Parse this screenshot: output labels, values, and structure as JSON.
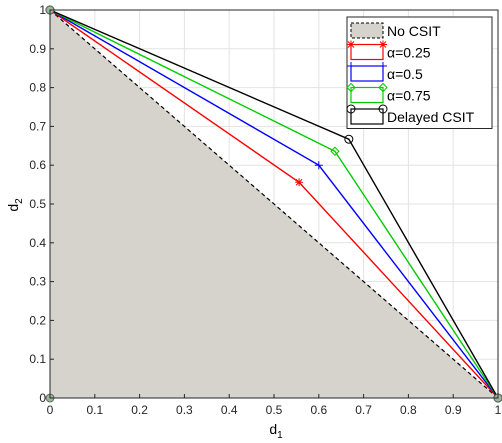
{
  "chart_data": {
    "type": "line",
    "title": "",
    "xlabel": "d",
    "xlabel_sub": "1",
    "ylabel": "d",
    "ylabel_sub": "2",
    "xlim": [
      0,
      1
    ],
    "ylim": [
      0,
      1
    ],
    "xticks": [
      "0",
      "0.1",
      "0.2",
      "0.3",
      "0.4",
      "0.5",
      "0.6",
      "0.7",
      "0.8",
      "0.9",
      "1"
    ],
    "yticks": [
      "0",
      "0.1",
      "0.2",
      "0.3",
      "0.4",
      "0.5",
      "0.6",
      "0.7",
      "0.8",
      "0.9",
      "1"
    ],
    "grid": true,
    "legend_position": "top-right",
    "series": [
      {
        "name": "No CSIT",
        "kind": "region",
        "color": "#d6d2cc",
        "line_color": "#000000",
        "line_style": "dashed",
        "points": [
          [
            0,
            1
          ],
          [
            1,
            0
          ]
        ]
      },
      {
        "name": "α=0.25",
        "color": "#ff0000",
        "marker": "star",
        "points": [
          [
            0,
            1
          ],
          [
            0.556,
            0.556
          ],
          [
            1,
            0
          ]
        ]
      },
      {
        "name": "α=0.5",
        "color": "#0000ff",
        "marker": "plus",
        "points": [
          [
            0,
            1
          ],
          [
            0.6,
            0.6
          ],
          [
            1,
            0
          ]
        ]
      },
      {
        "name": "α=0.75",
        "color": "#00cc00",
        "marker": "diamond",
        "points": [
          [
            0,
            1
          ],
          [
            0.636,
            0.636
          ],
          [
            1,
            0
          ]
        ]
      },
      {
        "name": "Delayed CSIT",
        "color": "#000000",
        "marker": "circle",
        "points": [
          [
            0,
            1
          ],
          [
            0.667,
            0.667
          ],
          [
            1,
            0
          ]
        ]
      }
    ]
  }
}
